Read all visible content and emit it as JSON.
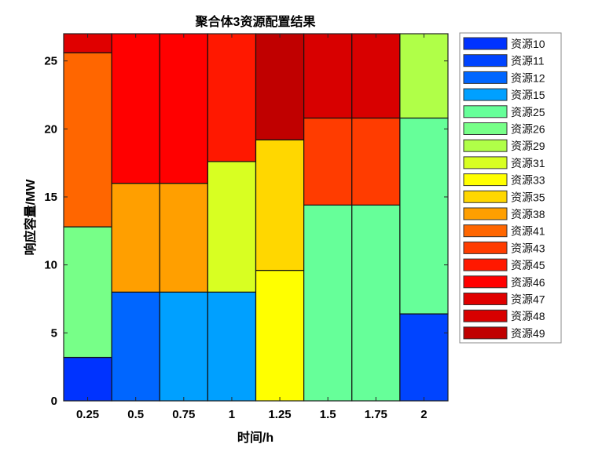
{
  "chart_data": {
    "type": "bar",
    "stacked": true,
    "title": "聚合体3资源配置结果",
    "xlabel": "时间/h",
    "ylabel": "响应容量/MW",
    "categories": [
      "0.25",
      "0.5",
      "0.75",
      "1",
      "1.25",
      "1.5",
      "1.75",
      "2"
    ],
    "ylim": [
      0,
      27
    ],
    "yticks": [
      0,
      5,
      10,
      15,
      20,
      25
    ],
    "legend_position": "outside-right",
    "series": [
      {
        "name": "资源10",
        "color": "#0033ff",
        "values": [
          3.2,
          0,
          0,
          0,
          0,
          0,
          0,
          0
        ]
      },
      {
        "name": "资源11",
        "color": "#0044ff",
        "values": [
          0,
          0,
          0,
          0,
          0,
          0,
          0,
          6.4
        ]
      },
      {
        "name": "资源12",
        "color": "#0066ff",
        "values": [
          0,
          8,
          0,
          0,
          0,
          0,
          0,
          0
        ]
      },
      {
        "name": "资源15",
        "color": "#00a0ff",
        "values": [
          0,
          0,
          8,
          8,
          0,
          0,
          0,
          0
        ]
      },
      {
        "name": "资源25",
        "color": "#66ff99",
        "values": [
          0,
          0,
          0,
          0,
          0,
          14.4,
          14.4,
          14.4
        ]
      },
      {
        "name": "资源26",
        "color": "#77ff88",
        "values": [
          9.6,
          0,
          0,
          0,
          0,
          0,
          0,
          0
        ]
      },
      {
        "name": "资源29",
        "color": "#b0ff48",
        "values": [
          0,
          0,
          0,
          0,
          0,
          0,
          0,
          6.2
        ]
      },
      {
        "name": "资源31",
        "color": "#d8ff22",
        "values": [
          0,
          0,
          0,
          9.6,
          0,
          0,
          0,
          0
        ]
      },
      {
        "name": "资源33",
        "color": "#ffff00",
        "values": [
          0,
          0,
          0,
          0,
          9.6,
          0,
          0,
          0
        ]
      },
      {
        "name": "资源35",
        "color": "#ffd700",
        "values": [
          0,
          0,
          0,
          0,
          9.6,
          0,
          0,
          0
        ]
      },
      {
        "name": "资源38",
        "color": "#ff9f00",
        "values": [
          0,
          8,
          8,
          0,
          0,
          0,
          0,
          0
        ]
      },
      {
        "name": "资源41",
        "color": "#ff6600",
        "values": [
          12.8,
          0,
          0,
          0,
          0,
          0,
          0,
          0
        ]
      },
      {
        "name": "资源43",
        "color": "#ff3c00",
        "values": [
          0,
          0,
          0,
          0,
          0,
          6.4,
          6.4,
          0
        ]
      },
      {
        "name": "资源45",
        "color": "#ff1800",
        "values": [
          0,
          0,
          0,
          9.4,
          0,
          0,
          0,
          0
        ]
      },
      {
        "name": "资源46",
        "color": "#ff0000",
        "values": [
          0,
          11,
          11,
          0,
          0,
          0,
          0,
          0
        ]
      },
      {
        "name": "资源47",
        "color": "#e00000",
        "values": [
          1.4,
          0,
          0,
          0,
          0,
          0,
          0,
          0
        ]
      },
      {
        "name": "资源48",
        "color": "#d80000",
        "values": [
          0,
          0,
          0,
          0,
          0,
          6.2,
          6.2,
          0
        ]
      },
      {
        "name": "资源49",
        "color": "#c00000",
        "values": [
          0,
          0,
          0,
          0,
          7.8,
          0,
          0,
          0
        ]
      }
    ]
  }
}
